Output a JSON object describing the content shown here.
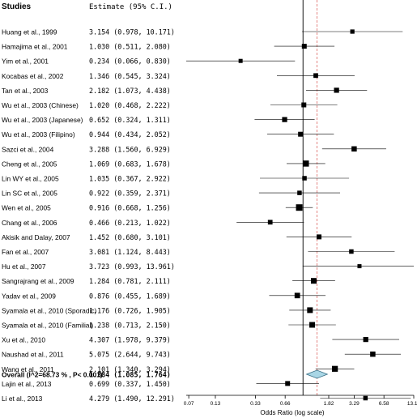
{
  "chart_data": {
    "type": "forest",
    "header": {
      "studies": "Studies",
      "estimate": "Estimate (95% C.I.)"
    },
    "xlabel": "Odds Ratio (log scale)",
    "x_scale": "log",
    "x_ticks": [
      "0.07",
      "0.13",
      "0.33",
      "0.66",
      "1.82",
      "3.29",
      "6.58",
      "13.17"
    ],
    "xlim": [
      0.066,
      13.17
    ],
    "reference_line": 1.0,
    "overall_line": 1.384,
    "studies": [
      {
        "label": "Huang et al., 1999",
        "estimate_text": "3.154 (0.978, 10.171)",
        "or": 3.154,
        "lo": 0.978,
        "hi": 10.171,
        "weight": 0.45
      },
      {
        "label": "Hamajima et al., 2001",
        "estimate_text": "1.030 (0.511, 2.080)",
        "or": 1.03,
        "lo": 0.511,
        "hi": 2.08,
        "weight": 0.6
      },
      {
        "label": "Yim et al., 2001",
        "estimate_text": "0.234 (0.066, 0.830)",
        "or": 0.234,
        "lo": 0.066,
        "hi": 0.83,
        "weight": 0.4
      },
      {
        "label": "Kocabas et al., 2002",
        "estimate_text": "1.346 (0.545, 3.324)",
        "or": 1.346,
        "lo": 0.545,
        "hi": 3.324,
        "weight": 0.55
      },
      {
        "label": "Tan et al., 2003",
        "estimate_text": "2.182 (1.073, 4.438)",
        "or": 2.182,
        "lo": 1.073,
        "hi": 4.438,
        "weight": 0.65
      },
      {
        "label": "Wu et al., 2003 (Chinese)",
        "estimate_text": "1.020 (0.468, 2.222)",
        "or": 1.02,
        "lo": 0.468,
        "hi": 2.222,
        "weight": 0.6
      },
      {
        "label": "Wu et al., 2003 (Japanese)",
        "estimate_text": "0.652 (0.324, 1.311)",
        "or": 0.652,
        "lo": 0.324,
        "hi": 1.311,
        "weight": 0.65
      },
      {
        "label": "Wu et al., 2003 (Filipino)",
        "estimate_text": "0.944 (0.434, 2.052)",
        "or": 0.944,
        "lo": 0.434,
        "hi": 2.052,
        "weight": 0.6
      },
      {
        "label": "Sazci et al., 2004",
        "estimate_text": "3.288 (1.560, 6.929)",
        "or": 3.288,
        "lo": 1.56,
        "hi": 6.929,
        "weight": 0.7
      },
      {
        "label": "Cheng et al., 2005",
        "estimate_text": "1.069 (0.683, 1.678)",
        "or": 1.069,
        "lo": 0.683,
        "hi": 1.678,
        "weight": 0.9
      },
      {
        "label": "Lin WY et al., 2005",
        "estimate_text": "1.035 (0.367, 2.922)",
        "or": 1.035,
        "lo": 0.367,
        "hi": 2.922,
        "weight": 0.5
      },
      {
        "label": "Lin SC et al., 2005",
        "estimate_text": "0.922 (0.359, 2.371)",
        "or": 0.922,
        "lo": 0.359,
        "hi": 2.371,
        "weight": 0.5
      },
      {
        "label": "Wen et al., 2005",
        "estimate_text": "0.916 (0.668, 1.256)",
        "or": 0.916,
        "lo": 0.668,
        "hi": 1.256,
        "weight": 1.0
      },
      {
        "label": "Chang et al., 2006",
        "estimate_text": "0.466 (0.213, 1.022)",
        "or": 0.466,
        "lo": 0.213,
        "hi": 1.022,
        "weight": 0.55
      },
      {
        "label": "Akisik and Dalay, 2007",
        "estimate_text": "1.452 (0.680, 3.101)",
        "or": 1.452,
        "lo": 0.68,
        "hi": 3.101,
        "weight": 0.6
      },
      {
        "label": "Fan et al., 2007",
        "estimate_text": "3.081 (1.124, 8.443)",
        "or": 3.081,
        "lo": 1.124,
        "hi": 8.443,
        "weight": 0.5
      },
      {
        "label": "Hu et al., 2007",
        "estimate_text": "3.723 (0.993, 13.961)",
        "or": 3.723,
        "lo": 0.993,
        "hi": 13.961,
        "weight": 0.4
      },
      {
        "label": "Sangrajrang et al., 2009",
        "estimate_text": "1.284 (0.781, 2.111)",
        "or": 1.284,
        "lo": 0.781,
        "hi": 2.111,
        "weight": 0.8
      },
      {
        "label": "Yadav et al., 2009",
        "estimate_text": "0.876 (0.455, 1.689)",
        "or": 0.876,
        "lo": 0.455,
        "hi": 1.689,
        "weight": 0.75
      },
      {
        "label": "Syamala et al., 2010 (Sporadic)",
        "estimate_text": "1.176 (0.726, 1.905)",
        "or": 1.176,
        "lo": 0.726,
        "hi": 1.905,
        "weight": 0.8
      },
      {
        "label": "Syamala et al., 2010 (Familial)",
        "estimate_text": "1.238 (0.713, 2.150)",
        "or": 1.238,
        "lo": 0.713,
        "hi": 2.15,
        "weight": 0.8
      },
      {
        "label": "Xu et al., 2010",
        "estimate_text": "4.307 (1.978, 9.379)",
        "or": 4.307,
        "lo": 1.978,
        "hi": 9.379,
        "weight": 0.65
      },
      {
        "label": "Naushad et al., 2011",
        "estimate_text": "5.075 (2.644, 9.743)",
        "or": 5.075,
        "lo": 2.644,
        "hi": 9.743,
        "weight": 0.7
      },
      {
        "label": "Wang et al., 2011",
        "estimate_text": "2.101 (1.340, 3.294)",
        "or": 2.101,
        "lo": 1.34,
        "hi": 3.294,
        "weight": 0.85
      },
      {
        "label": "Lajin et al., 2013",
        "estimate_text": "0.699 (0.337, 1.450)",
        "or": 0.699,
        "lo": 0.337,
        "hi": 1.45,
        "weight": 0.6
      },
      {
        "label": "Li et al., 2013",
        "estimate_text": "4.279 (1.490, 12.291)",
        "or": 4.279,
        "lo": 1.49,
        "hi": 12.291,
        "weight": 0.5
      }
    ],
    "overall": {
      "label": "Overall (I^2=68.73 % , P< 0.001)",
      "estimate_text": "1.384 (1.085, 1.764)",
      "or": 1.384,
      "lo": 1.085,
      "hi": 1.764
    },
    "colors": {
      "diamond_fill": "#a9d6e5",
      "diamond_stroke": "#3a6f85",
      "overall_line": "#d9534f",
      "ci_line": "#000000"
    }
  }
}
